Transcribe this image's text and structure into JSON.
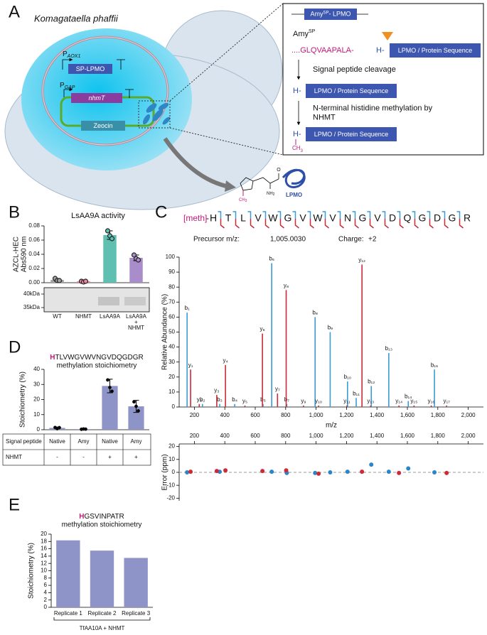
{
  "diagram": {
    "panel": "A",
    "organism": "Komagataella phaffii",
    "promoter1": "P",
    "promoter1_sub": "AOX1",
    "gene1": "SP-LPMO",
    "promoter2": "P",
    "promoter2_sub": "GAP",
    "gene2": "nhmT",
    "marker": "Zeocin",
    "inset": {
      "construct": "Amy",
      "construct_sup": "SP",
      "construct_rest": "- LPMO",
      "signal": "Amy",
      "signal_sup": "SP",
      "signal_seq": "....GLQVAAPALA-",
      "his": "H-",
      "protein": "LPMO / Protein Sequence",
      "step1": "Signal peptide cleavage",
      "step2": "N-terminal histidine methylation by NHMT",
      "methyl": "CH",
      "methyl_sub": "3"
    },
    "molecule": {
      "amine": "NH",
      "amine_sub": "2",
      "oxygen": "O",
      "methyl": "CH",
      "methyl_sub": "3",
      "label": "LPMO"
    }
  },
  "chart_data": [
    {
      "type": "bar",
      "panel": "B",
      "title": "LsAA9A activity",
      "ylabel": "AZCL-HEC Abs590 nm",
      "categories": [
        "WT",
        "NHMT",
        "LsAA9A",
        "LsAA9A + NHMT"
      ],
      "values": [
        0.004,
        0.002,
        0.067,
        0.035
      ],
      "errors": [
        0.002,
        0.001,
        0.006,
        0.004
      ],
      "replicates": [
        [
          0.006,
          0.003,
          0.003
        ],
        [
          0.002,
          0.001,
          0.002
        ],
        [
          0.073,
          0.066,
          0.062
        ],
        [
          0.039,
          0.034,
          0.032
        ]
      ],
      "colors": [
        "#a3a3a3",
        "#e88a9c",
        "#5fc0b2",
        "#a98dca"
      ],
      "ylim": [
        0,
        0.08
      ],
      "yticks": [
        {
          "value": 0,
          "label": "0.00"
        },
        0.02,
        0.04,
        0.06,
        0.08
      ],
      "gel_labels": [
        "40kDa",
        "35kDa"
      ]
    },
    {
      "type": "spectrum",
      "panel": "C",
      "ylabel": "Relative Abundance (%)",
      "xlabel": "m/z",
      "peptide": {
        "mod": "[meth]",
        "link": "-",
        "residues": [
          "H",
          "T",
          "L",
          "V",
          "W",
          "G",
          "V",
          "W",
          "V",
          "N",
          "G",
          "V",
          "D",
          "Q",
          "G",
          "D",
          "G",
          "R"
        ],
        "precursor_label": "Precursor m/z:",
        "precursor": "1,005.0030",
        "charge_label": "Charge:",
        "charge": "+2"
      },
      "xlim": [
        100,
        2100
      ],
      "xticks": [
        200,
        400,
        600,
        800,
        {
          "value": 1000,
          "label": "1,000"
        },
        {
          "value": 1200,
          "label": "1,200"
        },
        {
          "value": 1400,
          "label": "1,400"
        },
        {
          "value": 1600,
          "label": "1,600"
        },
        {
          "value": 1800,
          "label": "1,800"
        },
        {
          "value": 2000,
          "label": "2,000"
        }
      ],
      "ylim": [
        0,
        100
      ],
      "yticks": [
        0,
        10,
        20,
        30,
        40,
        50,
        60,
        70,
        80,
        90,
        100
      ],
      "series": [
        {
          "color": "#3a9bd5",
          "x": [
            152.08,
            253.13,
            366.21,
            465.28,
            651.36,
            708.38,
            807.45,
            993.53,
            1092.6,
            1206.64,
            1263.66,
            1362.73,
            1477.76,
            1605.82,
            1777.86
          ],
          "values": [
            63,
            2,
            2,
            2,
            2,
            96,
            2,
            60,
            50,
            17,
            6,
            14,
            36,
            4,
            25
          ],
          "labels": [
            "b₁",
            "b₂",
            "b₃",
            "b₄",
            "b₅",
            "b₆",
            "b₇",
            "b₈",
            "b₉",
            "b₁₀",
            "b₁₁",
            "b₁₂",
            "b₁₃",
            "b₁₄",
            "b₁₆"
          ]
        },
        {
          "color": "#cc2a36",
          "x": [
            175.12,
            232.14,
            347.17,
            404.19,
            532.25,
            647.28,
            746.35,
            803.37,
            917.41,
            1016.48,
            1202.56,
            1301.63,
            1358.65,
            1544.73,
            1643.8,
            1756.88,
            1857.93
          ],
          "values": [
            25,
            2,
            8,
            28,
            1,
            49,
            9,
            78,
            1,
            1,
            1,
            95,
            1,
            1,
            1,
            1,
            1
          ],
          "labels": [
            "y₁",
            "y₂",
            "y₃",
            "y₄",
            "y₅",
            "y₆",
            "y₇",
            "y₈",
            "y₉",
            "y₁₀",
            "y₁₁",
            "y₁₂",
            "y₁₃",
            "y₁₄",
            "y₁₅",
            "y₁₆",
            "y₁₇"
          ]
        }
      ]
    },
    {
      "type": "scatter",
      "ylabel": "Error (ppm)",
      "zero_line": true,
      "xlim": [
        100,
        2100
      ],
      "xticks": [
        200,
        400,
        600,
        800,
        {
          "value": 1000,
          "label": "1,000"
        },
        {
          "value": 1200,
          "label": "1,200"
        },
        {
          "value": 1400,
          "label": "1,400"
        },
        {
          "value": 1600,
          "label": "1,600"
        },
        {
          "value": 1800,
          "label": "1,800"
        },
        {
          "value": 2000,
          "label": "2,000"
        }
      ],
      "ylim": [
        -22,
        22
      ],
      "yticks": [
        20,
        10,
        0,
        -10,
        -20
      ],
      "series": [
        {
          "color": "#2a86c8",
          "x": [
            152.08,
            366.21,
            708.38,
            807.45,
            993.53,
            1092.6,
            1206.64,
            1362.73,
            1477.76,
            1605.82,
            1777.86
          ],
          "values": [
            0,
            0.5,
            0.5,
            -0.5,
            -0.5,
            0,
            0.5,
            6,
            0.5,
            3,
            0
          ]
        },
        {
          "color": "#cc2a36",
          "x": [
            175.12,
            347.17,
            404.19,
            647.28,
            803.37,
            1016.48,
            1301.63,
            1544.73,
            1857.93
          ],
          "values": [
            0.5,
            1,
            1.5,
            1,
            1.5,
            -1,
            0.5,
            -0.5,
            -0.5
          ]
        }
      ]
    },
    {
      "type": "bar",
      "panel": "D",
      "title_mark": "H",
      "title": "TLVWGVWVNGVDQGDGR",
      "subtitle": "methylation stoichiometry",
      "ylabel": "Stoichiometry (%)",
      "values": [
        1.2,
        0.4,
        29,
        15.5
      ],
      "errors": [
        0.6,
        0.3,
        4.5,
        4
      ],
      "replicates": [
        [
          1.5,
          0.7,
          1.4
        ],
        [
          0.3,
          0.5,
          0.4
        ],
        [
          33,
          28,
          25.5
        ],
        [
          18.5,
          15.5,
          12.5
        ]
      ],
      "color": "#8e93c8",
      "ylim": [
        0,
        40
      ],
      "yticks": [
        0,
        10,
        20,
        30,
        40
      ],
      "table": {
        "rows": [
          {
            "label": "Signal peptide",
            "cells": [
              "Native",
              "Amy",
              "Native",
              "Amy"
            ]
          },
          {
            "label": "NHMT",
            "cells": [
              "-",
              "-",
              "+",
              "+"
            ]
          }
        ]
      }
    },
    {
      "type": "bar",
      "panel": "E",
      "title_mark": "H",
      "title": "GSVINPATR",
      "subtitle": "methylation stoichiometry",
      "ylabel": "Stoichiometry (%)",
      "categories": [
        "Replicate 1",
        "Replicate 2",
        "Replicate 3"
      ],
      "values": [
        18.3,
        15.5,
        13.5
      ],
      "color": "#8e93c8",
      "ylim": [
        0,
        20
      ],
      "yticks": [
        0,
        2,
        4,
        6,
        8,
        10,
        12,
        14,
        16,
        18,
        20
      ],
      "group_label": "TfAA10A + NHMT"
    }
  ]
}
